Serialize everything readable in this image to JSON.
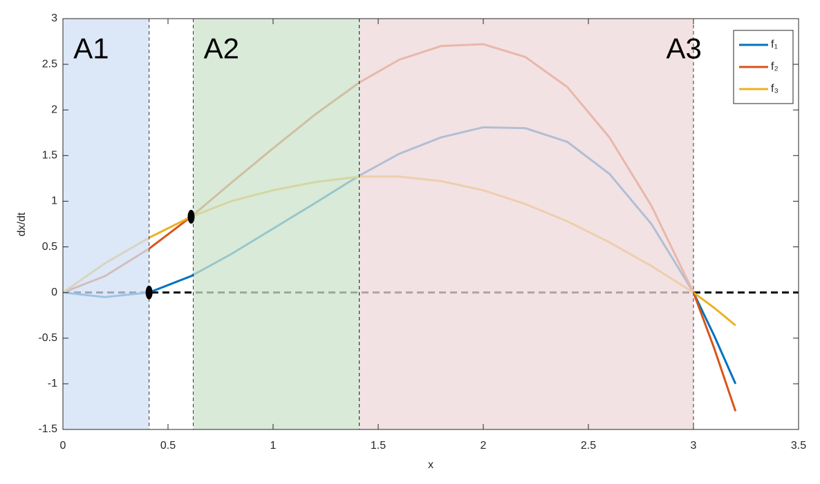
{
  "chart_data": {
    "type": "line",
    "x_label": "x",
    "y_label": "dx/dt",
    "x": [
      0,
      0.2,
      0.41,
      0.61,
      0.8,
      1.0,
      1.2,
      1.41,
      1.6,
      1.8,
      2.0,
      2.2,
      2.4,
      2.6,
      2.8,
      3.0,
      3.1,
      3.2
    ],
    "series": [
      {
        "name": "f₁",
        "color": "#0072BD",
        "values": [
          0,
          -0.05,
          0,
          0.18,
          0.42,
          0.7,
          0.98,
          1.28,
          1.52,
          1.7,
          1.81,
          1.8,
          1.65,
          1.3,
          0.75,
          0,
          -0.48,
          -1.0
        ]
      },
      {
        "name": "f₂",
        "color": "#D95319",
        "values": [
          0,
          0.18,
          0.48,
          0.83,
          1.2,
          1.58,
          1.95,
          2.3,
          2.55,
          2.7,
          2.72,
          2.58,
          2.25,
          1.7,
          0.95,
          0,
          -0.62,
          -1.3
        ]
      },
      {
        "name": "f₃",
        "color": "#EDB120",
        "values": [
          0,
          0.32,
          0.6,
          0.83,
          1.0,
          1.12,
          1.21,
          1.27,
          1.27,
          1.22,
          1.12,
          0.97,
          0.78,
          0.55,
          0.29,
          0,
          -0.17,
          -0.36
        ]
      }
    ],
    "regions": [
      {
        "x": [
          0,
          0.41
        ],
        "color": "#d0e0f4"
      },
      {
        "x": [
          0.62,
          1.41
        ],
        "color": "#cce3cc"
      },
      {
        "x": [
          1.41,
          3.0
        ],
        "color": "#eed8db"
      }
    ],
    "annotations": [
      {
        "text": "A1",
        "x": 0.05,
        "y": 2.65
      },
      {
        "text": "A2",
        "x": 0.67,
        "y": 2.65
      },
      {
        "text": "A3",
        "x": 2.87,
        "y": 2.65
      }
    ],
    "points": [
      {
        "x": 0.41,
        "y": 0
      },
      {
        "x": 0.61,
        "y": 0.83
      }
    ],
    "zero_line": {
      "y": 0
    },
    "xlim": [
      0,
      3.5
    ],
    "xticks": [
      0,
      0.5,
      1,
      1.5,
      2,
      2.5,
      3,
      3.5
    ],
    "ylim": [
      -1.5,
      3
    ],
    "yticks": [
      -1.5,
      -1,
      -0.5,
      0,
      0.5,
      1,
      1.5,
      2,
      2.5,
      3
    ],
    "grid": false,
    "legend": "northeast"
  }
}
